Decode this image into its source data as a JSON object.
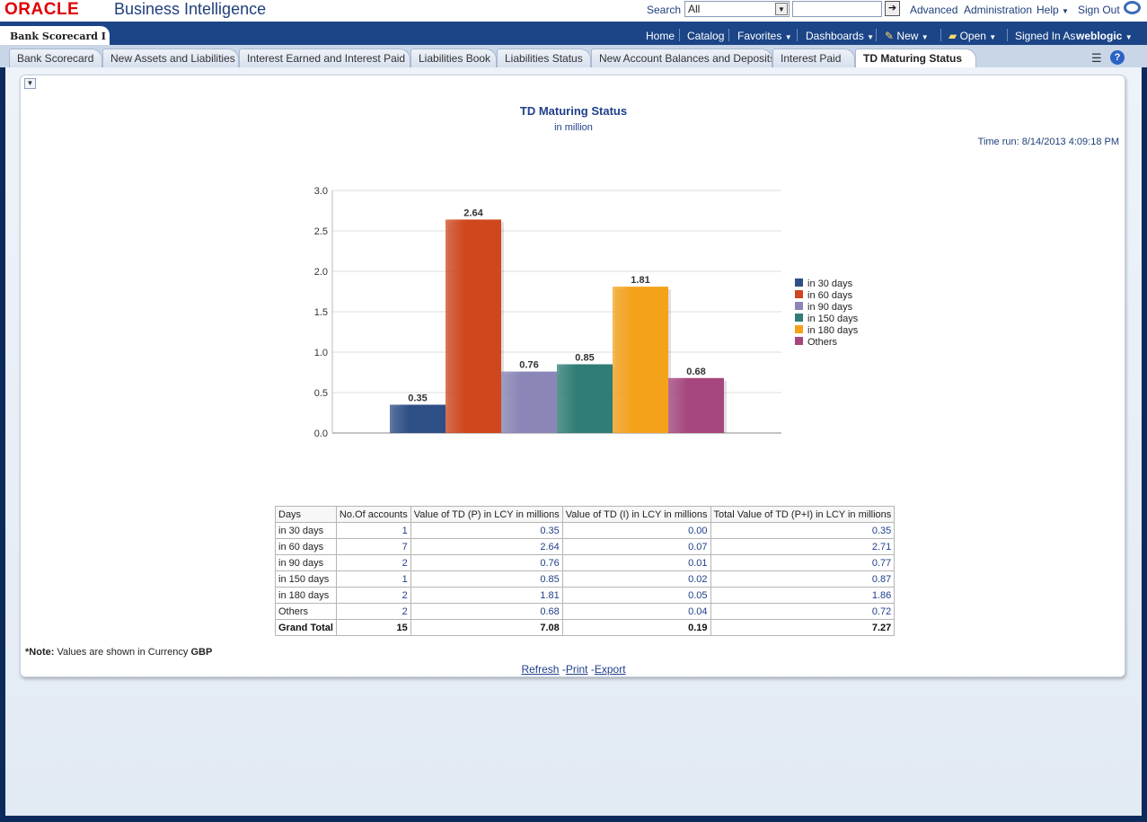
{
  "header": {
    "logo": "ORACLE",
    "product": "Business Intelligence",
    "search_label": "Search",
    "search_scope": "All",
    "search_query": "",
    "links": [
      "Advanced",
      "Administration",
      "Help",
      "Sign Out"
    ]
  },
  "nav": {
    "dashboard_title": "Bank Scorecard I",
    "items": [
      "Home",
      "Catalog",
      "Favorites",
      "Dashboards",
      "New",
      "Open"
    ],
    "signed_in_label": "Signed In As",
    "user": "weblogic"
  },
  "tabs": [
    "Bank Scorecard",
    "New Assets and Liabilities",
    "Interest Earned and Interest Paid",
    "Liabilities Book",
    "Liabilities Status",
    "New Account Balances and Deposits",
    "Interest Paid",
    "TD Maturing Status"
  ],
  "active_tab": "TD Maturing Status",
  "report": {
    "title": "TD Maturing Status",
    "subtitle": "in million",
    "time_run": "Time run: 8/14/2013 4:09:18 PM",
    "note_prefix": "*Note:",
    "note_text": " Values are shown in Currency ",
    "note_currency": "GBP",
    "footer_links": [
      "Refresh",
      "Print",
      "Export"
    ]
  },
  "chart_data": {
    "type": "bar",
    "title": "",
    "xlabel": "",
    "ylabel": "",
    "ylim": [
      0,
      3.0
    ],
    "yticks": [
      "0.0",
      "0.5",
      "1.0",
      "1.5",
      "2.0",
      "2.5",
      "3.0"
    ],
    "grid": true,
    "legend": "right",
    "series": [
      {
        "name": "in 30 days",
        "values": [
          0.35
        ],
        "label": "0.35",
        "color": "#2e4f86"
      },
      {
        "name": "in 60 days",
        "values": [
          2.64
        ],
        "label": "2.64",
        "color": "#d0471e"
      },
      {
        "name": "in 90 days",
        "values": [
          0.76
        ],
        "label": "0.76",
        "color": "#8a86b8"
      },
      {
        "name": "in 150 days",
        "values": [
          0.85
        ],
        "label": "0.85",
        "color": "#2f7d76"
      },
      {
        "name": "in 180 days",
        "values": [
          1.81
        ],
        "label": "1.81",
        "color": "#f5a21b"
      },
      {
        "name": "Others",
        "values": [
          0.68
        ],
        "label": "0.68",
        "color": "#a6467e"
      }
    ]
  },
  "table": {
    "columns": [
      "Days",
      "No.Of accounts",
      "Value of TD (P) in LCY in millions",
      "Value of TD (I) in LCY in millions",
      "Total Value of TD (P+I) in LCY in millions"
    ],
    "rows": [
      [
        "in 30 days",
        "1",
        "0.35",
        "0.00",
        "0.35"
      ],
      [
        "in 60 days",
        "7",
        "2.64",
        "0.07",
        "2.71"
      ],
      [
        "in 90 days",
        "2",
        "0.76",
        "0.01",
        "0.77"
      ],
      [
        "in 150 days",
        "1",
        "0.85",
        "0.02",
        "0.87"
      ],
      [
        "in 180 days",
        "2",
        "1.81",
        "0.05",
        "1.86"
      ],
      [
        "Others",
        "2",
        "0.68",
        "0.04",
        "0.72"
      ]
    ],
    "total": [
      "Grand Total",
      "15",
      "7.08",
      "0.19",
      "7.27"
    ]
  }
}
